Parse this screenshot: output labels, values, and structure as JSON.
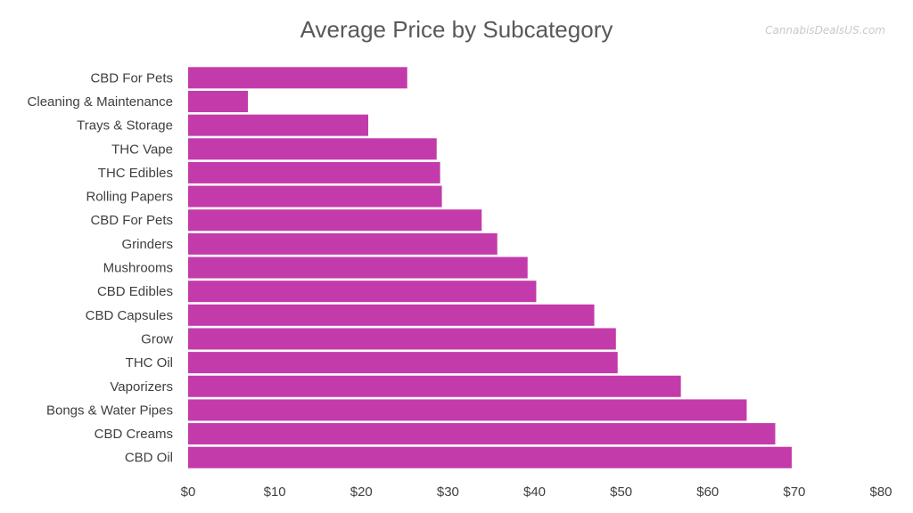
{
  "watermark": "CannabisDealsUS.com",
  "chart_data": {
    "type": "bar",
    "orientation": "horizontal",
    "title": "Average Price by Subcategory",
    "xlabel": "",
    "ylabel": "",
    "xlim": [
      0,
      80
    ],
    "x_ticks": [
      0,
      10,
      20,
      30,
      40,
      50,
      60,
      70,
      80
    ],
    "x_tick_labels": [
      "$0",
      "$10",
      "$20",
      "$30",
      "$40",
      "$50",
      "$60",
      "$70",
      "$80"
    ],
    "grid": false,
    "legend": "none",
    "bar_color": "#c33baa",
    "categories": [
      "CBD For Pets",
      "Cleaning & Maintenance",
      "Trays & Storage",
      "THC Vape",
      "THC Edibles",
      "Rolling Papers",
      "CBD For Pets",
      "Grinders",
      "Mushrooms",
      "CBD Edibles",
      "CBD Capsules",
      "Grow",
      "THC Oil",
      "Vaporizers",
      "Bongs & Water Pipes",
      "CBD Creams",
      "CBD Oil"
    ],
    "values": [
      25.3,
      6.9,
      20.8,
      28.7,
      29.1,
      29.3,
      33.9,
      35.7,
      39.2,
      40.2,
      46.9,
      49.4,
      49.6,
      56.9,
      64.5,
      67.8,
      69.7
    ]
  }
}
